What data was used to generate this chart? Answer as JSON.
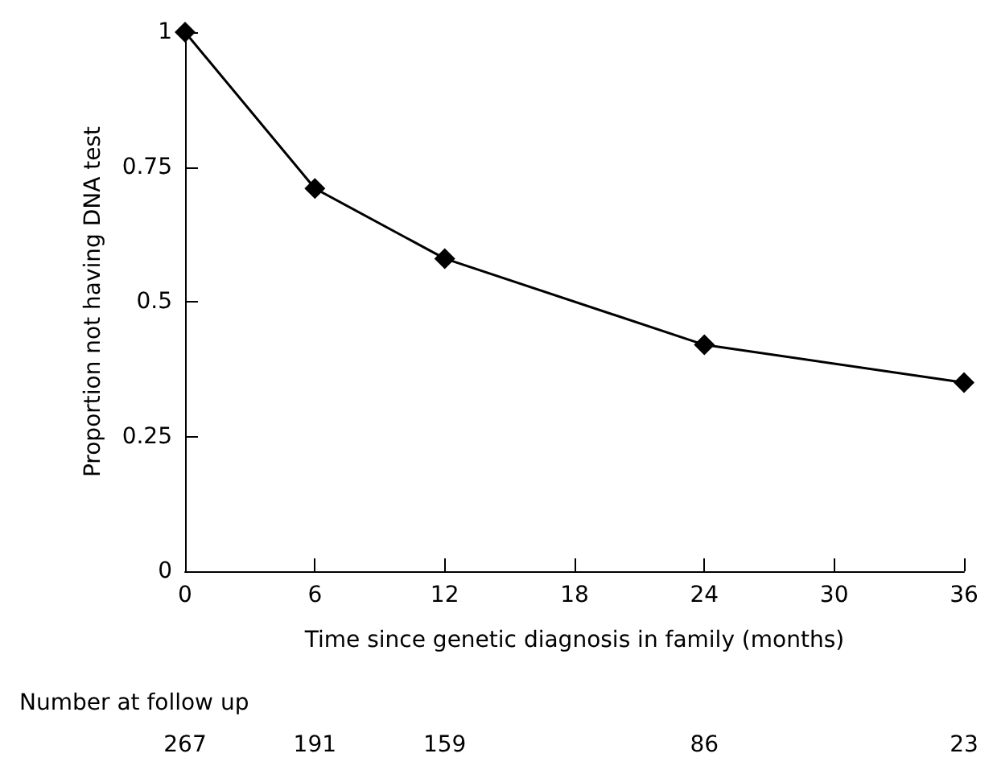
{
  "chart_data": {
    "type": "line",
    "xlabel": "Time since genetic diagnosis in family (months)",
    "ylabel": "Proportion not having DNA test",
    "x": [
      0,
      6,
      12,
      24,
      36
    ],
    "series": [
      {
        "color": "#000000",
        "values": [
          1,
          0.71,
          0.58,
          0.42,
          0.35
        ]
      }
    ],
    "xlim": [
      0,
      36
    ],
    "xticks": [
      0,
      6,
      12,
      18,
      24,
      30,
      36
    ],
    "ylim": [
      0,
      1
    ],
    "yticks": [
      0,
      0.25,
      0.5,
      0.75,
      1
    ],
    "marker": "diamond",
    "line_style": "solid",
    "grid": false,
    "legend": false,
    "annotations": [
      "Number at follow up",
      "267",
      "191",
      "159",
      "86",
      "23"
    ]
  }
}
